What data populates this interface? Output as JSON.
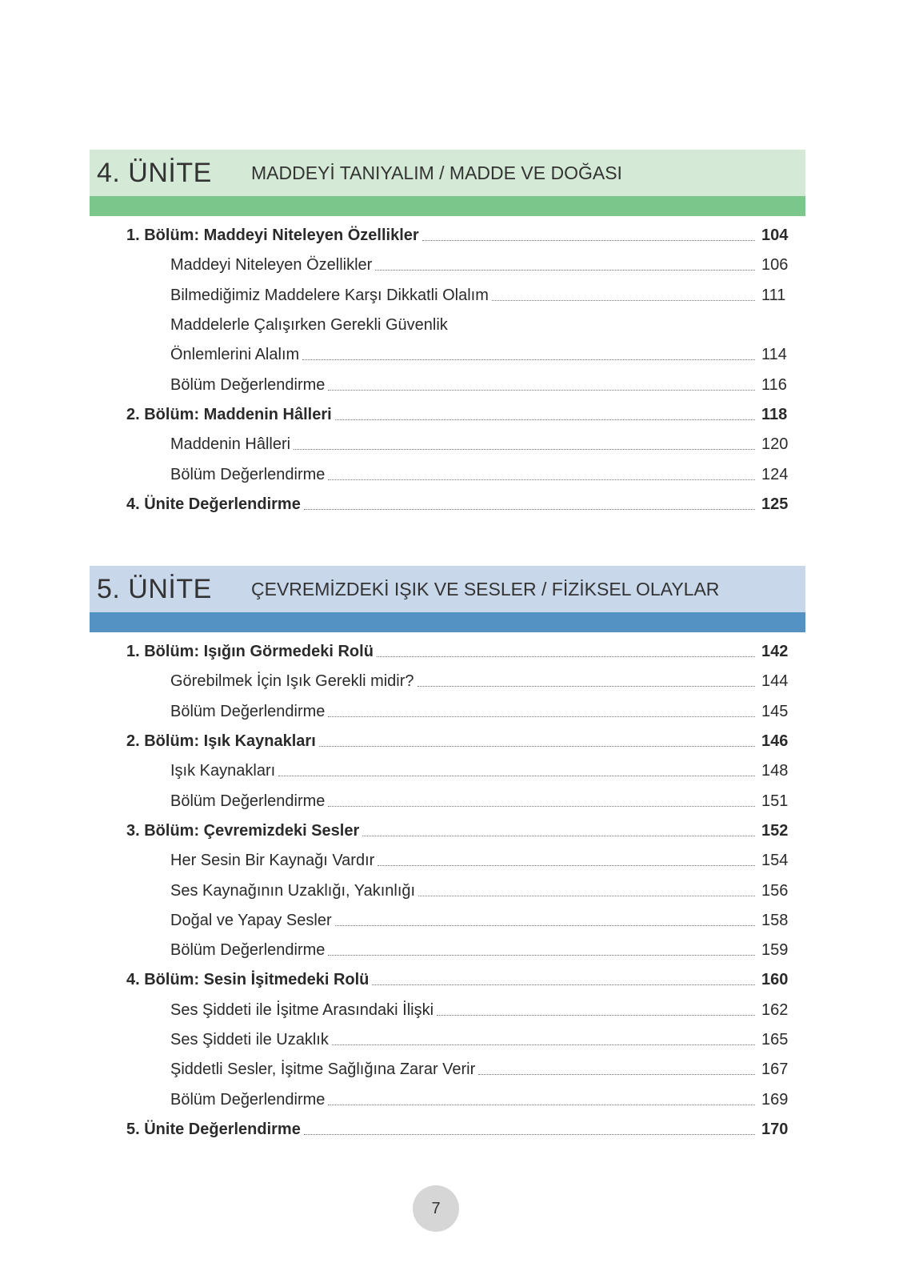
{
  "units": [
    {
      "number": "4. ÜNİTE",
      "title": "MADDEYİ TANIYALIM / MADDE VE DOĞASI",
      "colors": {
        "light": "#d5ead6",
        "dark": "#7bc68a"
      },
      "entries": [
        {
          "level": "chapter",
          "label": "1. Bölüm: Maddeyi Niteleyen Özellikler",
          "page": "104"
        },
        {
          "level": "section",
          "label": "Maddeyi Niteleyen Özellikler",
          "page": "106"
        },
        {
          "level": "section",
          "label": "Bilmediğimiz Maddelere Karşı Dikkatli Olalım",
          "page": "111"
        },
        {
          "level": "section",
          "label": "Maddelerle Çalışırken Gerekli Güvenlik",
          "page": ""
        },
        {
          "level": "section",
          "label": "Önlemlerini Alalım",
          "page": "114"
        },
        {
          "level": "section",
          "label": "Bölüm Değerlendirme",
          "page": "116"
        },
        {
          "level": "chapter",
          "label": "2. Bölüm: Maddenin Hâlleri",
          "page": "118"
        },
        {
          "level": "section",
          "label": "Maddenin Hâlleri",
          "page": "120"
        },
        {
          "level": "section",
          "label": "Bölüm Değerlendirme",
          "page": "124"
        },
        {
          "level": "chapter",
          "label": "4. Ünite Değerlendirme",
          "page": "125"
        }
      ]
    },
    {
      "number": "5. ÜNİTE",
      "title": "ÇEVREMİZDEKİ IŞIK VE SESLER / FİZİKSEL OLAYLAR",
      "colors": {
        "light": "#c8d7ea",
        "dark": "#5592c4"
      },
      "entries": [
        {
          "level": "chapter",
          "label": "1. Bölüm: Işığın Görmedeki Rolü",
          "page": "142"
        },
        {
          "level": "section",
          "label": "Görebilmek İçin Işık Gerekli midir?",
          "page": "144"
        },
        {
          "level": "section",
          "label": "Bölüm Değerlendirme",
          "page": "145"
        },
        {
          "level": "chapter",
          "label": "2. Bölüm: Işık Kaynakları",
          "page": "146"
        },
        {
          "level": "section",
          "label": "Işık Kaynakları",
          "page": "148"
        },
        {
          "level": "section",
          "label": "Bölüm Değerlendirme",
          "page": "151"
        },
        {
          "level": "chapter",
          "label": "3. Bölüm: Çevremizdeki Sesler",
          "page": "152"
        },
        {
          "level": "section",
          "label": "Her Sesin Bir Kaynağı Vardır",
          "page": "154"
        },
        {
          "level": "section",
          "label": "Ses Kaynağının Uzaklığı, Yakınlığı",
          "page": "156"
        },
        {
          "level": "section",
          "label": "Doğal ve Yapay Sesler",
          "page": "158"
        },
        {
          "level": "section",
          "label": "Bölüm Değerlendirme",
          "page": "159"
        },
        {
          "level": "chapter",
          "label": "4. Bölüm: Sesin İşitmedeki Rolü",
          "page": "160"
        },
        {
          "level": "section",
          "label": "Ses Şiddeti ile İşitme Arasındaki İlişki",
          "page": "162"
        },
        {
          "level": "section",
          "label": "Ses Şiddeti ile Uzaklık",
          "page": "165"
        },
        {
          "level": "section",
          "label": "Şiddetli Sesler, İşitme Sağlığına Zarar Verir",
          "page": "167"
        },
        {
          "level": "section",
          "label": "Bölüm Değerlendirme",
          "page": "169"
        },
        {
          "level": "chapter",
          "label": "5. Ünite Değerlendirme",
          "page": "170"
        }
      ]
    }
  ],
  "footer": {
    "page_number": "7"
  }
}
